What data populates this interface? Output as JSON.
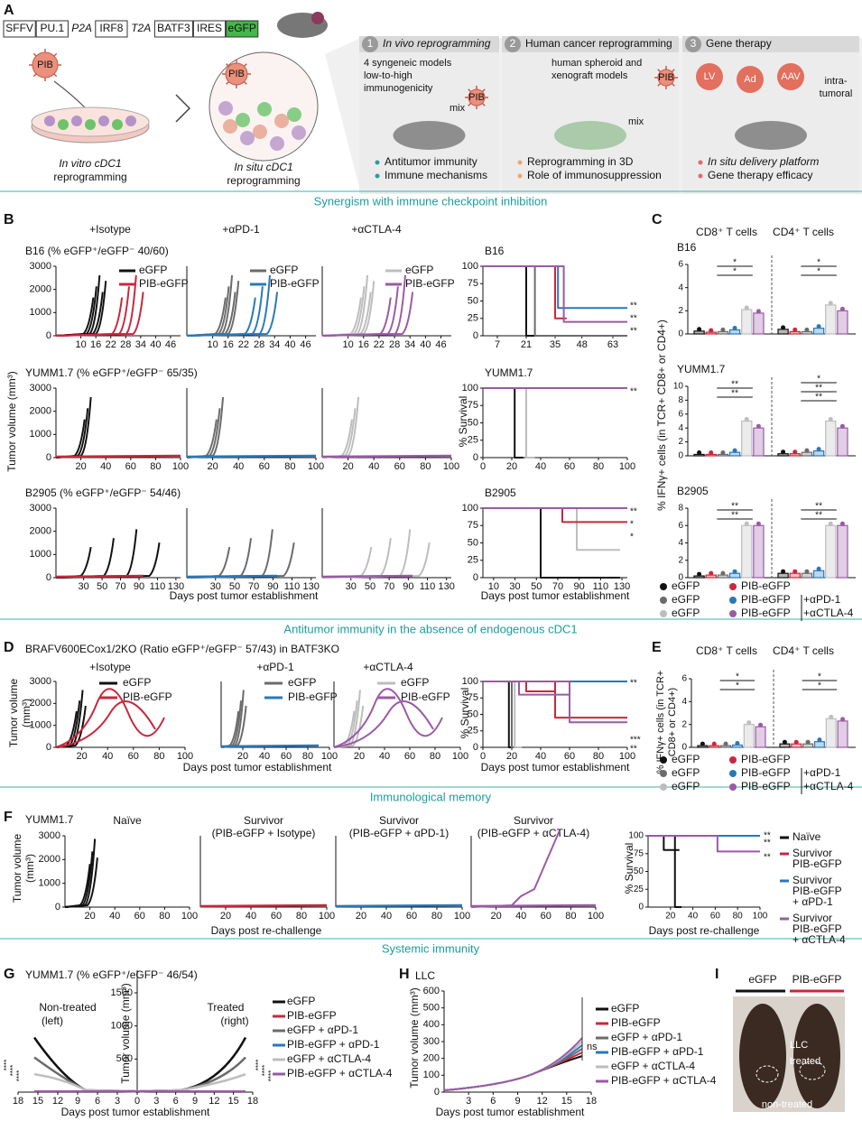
{
  "colors": [
    "#111111",
    "#c8283c",
    "#6b6b6b",
    "#2a78b8",
    "#bdbdbd",
    "#9a5aa5"
  ],
  "panel_a": {
    "label": "A",
    "construct": [
      "SFFV",
      "PU.1",
      "P2A",
      "IRF8",
      "T2A",
      "BATF3",
      "IRES",
      "eGFP"
    ],
    "pib": "PIB",
    "in_vitro": [
      "In vitro cDC1",
      "reprogramming"
    ],
    "in_situ": [
      "In situ cDC1",
      "reprogramming"
    ],
    "steps": [
      {
        "num": "1",
        "title": "In vivo reprogramming",
        "desc": [
          "4 syngeneic models",
          "low-to-high",
          "immunogenicity"
        ],
        "pib": "PIB",
        "mix": "mix",
        "bullets": [
          "Antitumor immunity",
          "Immune mechanisms"
        ]
      },
      {
        "num": "2",
        "title": "Human cancer reprogramming",
        "desc": [
          "human spheroid and",
          "xenograft models"
        ],
        "pib": "PIB",
        "mix": "mix",
        "bullets": [
          "Reprogramming in 3D",
          "Role of immunosuppression"
        ]
      },
      {
        "num": "3",
        "title": "Gene therapy",
        "vectors": [
          "LV",
          "Ad",
          "AAV"
        ],
        "desc": [
          "intra-",
          "tumoral"
        ],
        "bullets": [
          "In situ delivery platform",
          "Gene therapy efficacy"
        ]
      }
    ]
  },
  "sections": [
    "Synergism with immune checkpoint inhibition",
    "Antitumor immunity in the absence of endogenous cDC1",
    "Immunological memory",
    "Systemic immunity"
  ],
  "panel_b": {
    "label": "B",
    "columns": [
      "+Isotype",
      "+αPD-1",
      "+αCTLA-4"
    ],
    "legends": [
      [
        "eGFP",
        "PIB-eGFP"
      ],
      [
        "eGFP",
        "PIB-eGFP"
      ],
      [
        "eGFP",
        "PIB-eGFP"
      ]
    ],
    "ylabel": "Tumor volume (mm³)",
    "surv_ylabel": "% Survival",
    "xlabel": "Days post tumor establishment",
    "rows": [
      {
        "title": "B16 (% eGFP⁺/eGFP⁻ 40/60)",
        "survival_title": "B16",
        "ylim": [
          0,
          3000
        ],
        "yticks": [
          0,
          1000,
          2000,
          3000
        ],
        "xlim": [
          0,
          50
        ],
        "xticks": [
          10,
          16,
          22,
          28,
          34,
          40,
          46
        ],
        "surv_xlim": [
          0,
          70
        ],
        "surv_xticks": [
          7,
          21,
          35,
          48,
          63
        ],
        "surv_ylim": [
          0,
          100
        ],
        "surv_yticks": [
          0,
          25,
          50,
          75,
          100
        ],
        "surv_marks": [
          "**",
          "**",
          "**"
        ]
      },
      {
        "title": "YUMM1.7 (% eGFP⁺/eGFP⁻ 65/35)",
        "survival_title": "YUMM1.7",
        "ylim": [
          0,
          3000
        ],
        "yticks": [
          0,
          1000,
          2000,
          3000
        ],
        "xlim": [
          0,
          100
        ],
        "xticks": [
          20,
          40,
          60,
          80,
          100
        ],
        "surv_xlim": [
          0,
          100
        ],
        "surv_xticks": [
          0,
          20,
          40,
          60,
          80,
          100
        ],
        "surv_ylim": [
          0,
          100
        ],
        "surv_yticks": [
          0,
          25,
          50,
          75,
          100
        ],
        "surv_marks": [
          "**"
        ]
      },
      {
        "title": "B2905 (% eGFP⁺/eGFP⁻ 54/46)",
        "survival_title": "B2905",
        "ylim": [
          0,
          3000
        ],
        "yticks": [
          0,
          1000,
          2000,
          3000
        ],
        "xlim": [
          0,
          135
        ],
        "xticks": [
          30,
          50,
          70,
          90,
          110,
          130
        ],
        "surv_xlim": [
          0,
          135
        ],
        "surv_xticks": [
          10,
          30,
          50,
          70,
          90,
          110,
          130
        ],
        "surv_ylim": [
          0,
          100
        ],
        "surv_yticks": [
          0,
          25,
          50,
          75,
          100
        ],
        "surv_marks": [
          "**",
          "*",
          "*"
        ]
      }
    ]
  },
  "panel_c": {
    "label": "C",
    "headers": [
      "CD8⁺ T cells",
      "CD4⁺ T cells"
    ],
    "ylabel": "% IFNγ+ cells (in TCR+ CD8+ or CD4+)",
    "charts": [
      {
        "title": "B16",
        "ylim": [
          0,
          6
        ],
        "yticks": [
          0,
          2,
          4,
          6
        ],
        "groups": [
          [
            0.25,
            0.15,
            0.2,
            0.35,
            2.1,
            1.8
          ],
          [
            0.4,
            0.2,
            0.2,
            0.5,
            2.5,
            2.0
          ]
        ],
        "sig": [
          [
            "*",
            "*"
          ],
          [
            "*",
            "*"
          ]
        ]
      },
      {
        "title": "YUMM1.7",
        "ylim": [
          0,
          10
        ],
        "yticks": [
          0,
          2,
          4,
          6,
          8,
          10
        ],
        "groups": [
          [
            0.2,
            0.2,
            0.2,
            0.5,
            5,
            4
          ],
          [
            0.3,
            0.3,
            0.5,
            0.7,
            5,
            4
          ]
        ],
        "sig": [
          [
            "**",
            "**"
          ],
          [
            "*",
            "**",
            "**"
          ]
        ]
      },
      {
        "title": "B2905",
        "ylim": [
          0,
          8
        ],
        "yticks": [
          0,
          2,
          4,
          6,
          8
        ],
        "groups": [
          [
            0.2,
            0.3,
            0.3,
            0.5,
            6,
            6
          ],
          [
            0.5,
            0.5,
            0.5,
            0.8,
            6,
            6
          ]
        ],
        "sig": [
          [
            "**",
            "**"
          ],
          [
            "**",
            "**"
          ]
        ]
      }
    ],
    "legend": {
      "items": [
        "eGFP",
        "PIB-eGFP",
        "eGFP",
        "PIB-eGFP",
        "eGFP",
        "PIB-eGFP"
      ],
      "treatments": [
        "+αPD-1",
        "+αCTLA-4"
      ]
    }
  },
  "panel_d": {
    "label": "D",
    "title": "BRAFV600ECox1/2KO (Ratio eGFP⁺/eGFP⁻ 57/43) in BATF3KO",
    "columns": [
      "+Isotype",
      "+αPD-1",
      "+αCTLA-4"
    ],
    "legends": [
      [
        "eGFP",
        "PIB-eGFP"
      ],
      [
        "eGFP",
        "PIB-eGFP"
      ],
      [
        "eGFP",
        "PIB-eGFP"
      ]
    ],
    "ylabel": [
      "Tumor volume",
      "(mm³)"
    ],
    "surv_ylabel": "% Survival",
    "xlabel": "Days post tumor establishment",
    "ylim": [
      0,
      3000
    ],
    "yticks": [
      0,
      1000,
      2000,
      3000
    ],
    "xlim": [
      0,
      100
    ],
    "xticks": [
      20,
      40,
      60,
      80,
      100
    ],
    "surv_xlim": [
      0,
      100
    ],
    "surv_xticks": [
      0,
      20,
      40,
      60,
      80,
      100
    ],
    "surv_ylim": [
      0,
      100
    ],
    "surv_yticks": [
      0,
      25,
      50,
      75,
      100
    ],
    "surv_marks": [
      "**",
      "***",
      "**"
    ]
  },
  "panel_e": {
    "label": "E",
    "headers": [
      "CD8⁺ T cells",
      "CD4⁺ T cells"
    ],
    "ylabel": [
      "% IFNγ+ cells (in TCR+",
      "CD8+ or CD4+)"
    ],
    "ylim": [
      0,
      6
    ],
    "yticks": [
      0,
      2,
      4,
      6
    ],
    "groups": [
      [
        0.15,
        0.15,
        0.15,
        0.2,
        2,
        1.8
      ],
      [
        0.3,
        0.3,
        0.3,
        0.5,
        2.5,
        2.3
      ]
    ],
    "sig": [
      [
        "*",
        "*"
      ],
      [
        "*",
        "*"
      ]
    ],
    "legend": {
      "items": [
        "eGFP",
        "PIB-eGFP",
        "eGFP",
        "PIB-eGFP",
        "eGFP",
        "PIB-eGFP"
      ],
      "treatments": [
        "+αPD-1",
        "+αCTLA-4"
      ]
    }
  },
  "panel_f": {
    "label": "F",
    "model": "YUMM1.7",
    "columns": [
      [
        "Naïve"
      ],
      [
        "Survivor",
        "(PIB-eGFP + Isotype)"
      ],
      [
        "Survivor",
        "(PIB-eGFP + αPD-1)"
      ],
      [
        "Survivor",
        "(PIB-eGFP + αCTLA-4)"
      ]
    ],
    "ylabel": [
      "Tumor volume",
      "(mm³)"
    ],
    "surv_ylabel": "% Survival",
    "xlabel": "Days post re-challenge",
    "ylim": [
      0,
      3000
    ],
    "yticks": [
      0,
      1000,
      2000,
      3000
    ],
    "xlim": [
      0,
      100
    ],
    "xticks": [
      20,
      40,
      60,
      80,
      100
    ],
    "surv_xlim": [
      0,
      100
    ],
    "surv_xticks": [
      20,
      40,
      60,
      80,
      100
    ],
    "surv_ylim": [
      0,
      100
    ],
    "surv_yticks": [
      0,
      25,
      50,
      75,
      100
    ],
    "surv_marks": [
      "**",
      "**",
      "**"
    ],
    "legend": [
      [
        "Naïve"
      ],
      [
        "Survivor",
        "PIB-eGFP"
      ],
      [
        "Survivor",
        "PIB-eGFP",
        "+ αPD-1"
      ],
      [
        "Survivor",
        "PIB-eGFP",
        "+ αCTLA-4"
      ]
    ]
  },
  "panel_g": {
    "label": "G",
    "title": "YUMM1.7 (% eGFP⁺/eGFP⁻ 46/54)",
    "left": [
      "Non-treated",
      "(left)"
    ],
    "right": [
      "Treated",
      "(right)"
    ],
    "ylabel": "Tumor volume (mm³)",
    "xlabel": "Days post tumor establishment",
    "ylim": [
      0,
      1500
    ],
    "yticks": [
      500,
      1000,
      1500
    ],
    "left_xlim": [
      18,
      0
    ],
    "left_xticks": [
      18,
      15,
      12,
      9,
      6,
      3,
      0
    ],
    "right_xlim": [
      0,
      18
    ],
    "right_xticks": [
      3,
      6,
      9,
      12,
      15,
      18
    ],
    "sig_left": [
      "****",
      "****",
      "****"
    ],
    "sig_right": [
      "****",
      "****",
      "****"
    ],
    "legend": [
      "eGFP",
      "PIB-eGFP",
      "eGFP + αPD-1",
      "PIB-eGFP + αPD-1",
      "eGFP + αCTLA-4",
      "PIB-eGFP + αCTLA-4"
    ]
  },
  "panel_h": {
    "label": "H",
    "title": "LLC",
    "ylabel": "Tumor volume (mm³)",
    "xlabel": "Days post tumor establishment",
    "ylim": [
      0,
      600
    ],
    "yticks": [
      0,
      100,
      200,
      300,
      400,
      500,
      600
    ],
    "xlim": [
      0,
      18
    ],
    "xticks": [
      3,
      6,
      9,
      12,
      15,
      18
    ],
    "sig": "ns",
    "legend": [
      "eGFP",
      "PIB-eGFP",
      "eGFP + αPD-1",
      "PIB-eGFP + αPD-1",
      "eGFP + αCTLA-4",
      "PIB-eGFP + αCTLA-4"
    ]
  },
  "panel_i": {
    "label": "I",
    "columns": [
      "eGFP",
      "PIB-eGFP"
    ],
    "annotations": [
      "LLC",
      "treated",
      "non-treated"
    ]
  }
}
